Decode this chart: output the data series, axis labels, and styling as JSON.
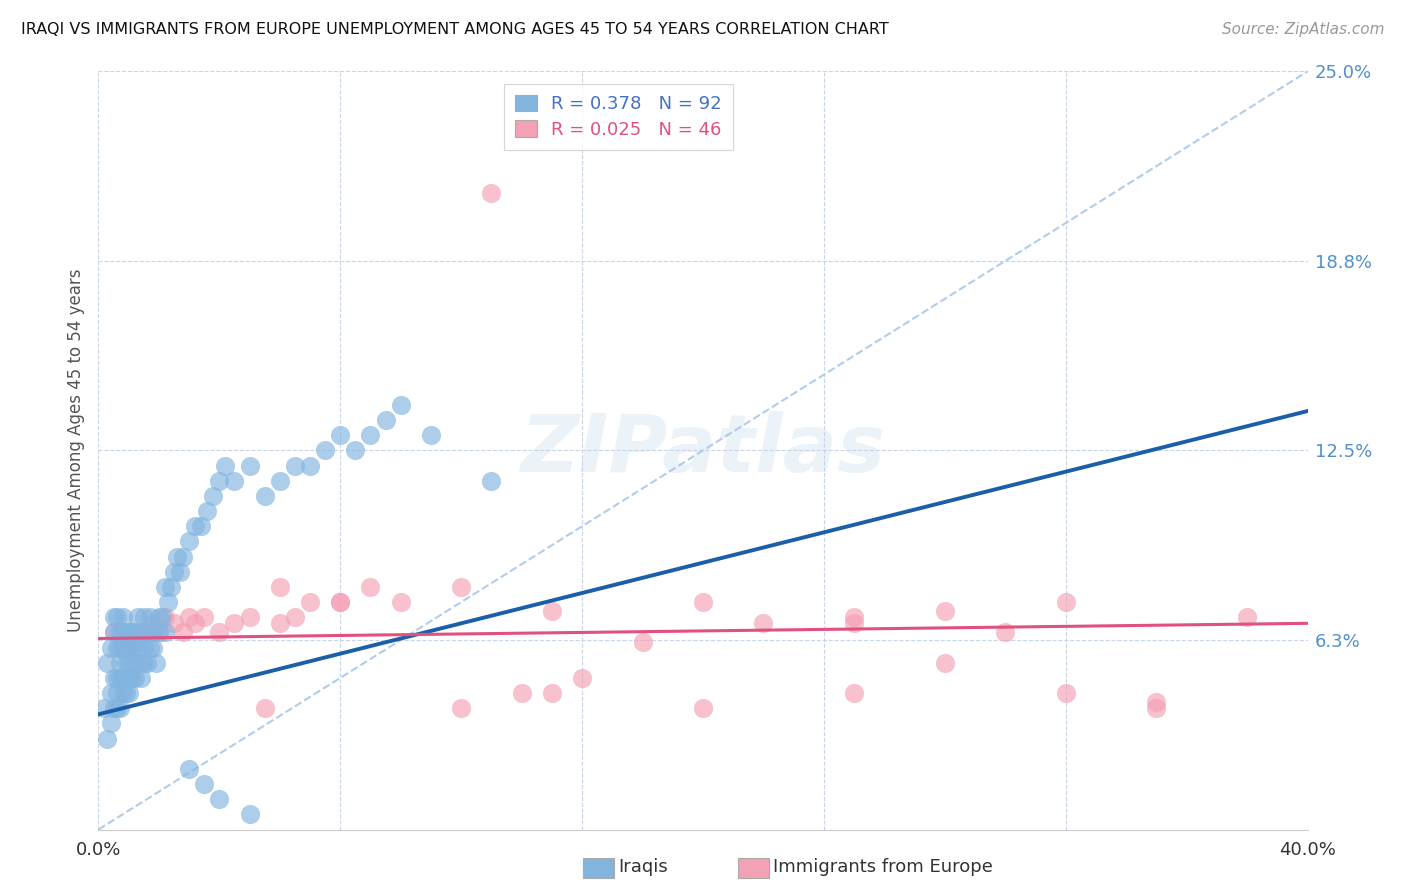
{
  "title": "IRAQI VS IMMIGRANTS FROM EUROPE UNEMPLOYMENT AMONG AGES 45 TO 54 YEARS CORRELATION CHART",
  "source": "Source: ZipAtlas.com",
  "ylabel": "Unemployment Among Ages 45 to 54 years",
  "xlim": [
    0.0,
    0.4
  ],
  "ylim": [
    0.0,
    0.25
  ],
  "yticks": [
    0.0,
    0.0625,
    0.125,
    0.1875,
    0.25
  ],
  "ytick_labels": [
    "",
    "6.3%",
    "12.5%",
    "18.8%",
    "25.0%"
  ],
  "xticks": [
    0.0,
    0.08,
    0.16,
    0.24,
    0.32,
    0.4
  ],
  "xtick_labels": [
    "0.0%",
    "",
    "",
    "",
    "",
    "40.0%"
  ],
  "legend_label1": "R = 0.378   N = 92",
  "legend_label2": "R = 0.025   N = 46",
  "legend_color1": "#82b4e0",
  "legend_color2": "#f4a0b5",
  "watermark_text": "ZIPatlas",
  "iraqis_color": "#82b4e0",
  "europe_color": "#f4a0b5",
  "iraqis_line_color": "#1a5fa8",
  "europe_line_color": "#e05080",
  "dashed_line_color": "#a8c8e8",
  "background_color": "#ffffff",
  "grid_color": "#c8d4e8",
  "right_tick_color": "#5090cc",
  "bottom_legend_label1": "Iraqis",
  "bottom_legend_label2": "Immigrants from Europe",
  "iraq_x": [
    0.002,
    0.003,
    0.003,
    0.004,
    0.004,
    0.004,
    0.005,
    0.005,
    0.005,
    0.005,
    0.006,
    0.006,
    0.006,
    0.006,
    0.006,
    0.007,
    0.007,
    0.007,
    0.007,
    0.007,
    0.008,
    0.008,
    0.008,
    0.008,
    0.008,
    0.009,
    0.009,
    0.009,
    0.009,
    0.009,
    0.01,
    0.01,
    0.01,
    0.01,
    0.01,
    0.011,
    0.011,
    0.011,
    0.012,
    0.012,
    0.012,
    0.013,
    0.013,
    0.014,
    0.014,
    0.014,
    0.015,
    0.015,
    0.015,
    0.016,
    0.016,
    0.017,
    0.017,
    0.018,
    0.018,
    0.019,
    0.02,
    0.02,
    0.021,
    0.022,
    0.022,
    0.023,
    0.024,
    0.025,
    0.026,
    0.027,
    0.028,
    0.03,
    0.032,
    0.034,
    0.036,
    0.038,
    0.04,
    0.042,
    0.045,
    0.05,
    0.055,
    0.06,
    0.065,
    0.07,
    0.075,
    0.08,
    0.085,
    0.09,
    0.095,
    0.1,
    0.11,
    0.13,
    0.03,
    0.035,
    0.04,
    0.05
  ],
  "iraq_y": [
    0.04,
    0.055,
    0.03,
    0.045,
    0.06,
    0.035,
    0.05,
    0.065,
    0.04,
    0.07,
    0.045,
    0.06,
    0.05,
    0.07,
    0.04,
    0.055,
    0.065,
    0.04,
    0.06,
    0.05,
    0.045,
    0.06,
    0.07,
    0.05,
    0.065,
    0.045,
    0.06,
    0.05,
    0.065,
    0.055,
    0.05,
    0.065,
    0.045,
    0.06,
    0.055,
    0.05,
    0.065,
    0.06,
    0.055,
    0.065,
    0.05,
    0.06,
    0.07,
    0.055,
    0.065,
    0.05,
    0.06,
    0.055,
    0.07,
    0.065,
    0.055,
    0.06,
    0.07,
    0.065,
    0.06,
    0.055,
    0.07,
    0.065,
    0.07,
    0.065,
    0.08,
    0.075,
    0.08,
    0.085,
    0.09,
    0.085,
    0.09,
    0.095,
    0.1,
    0.1,
    0.105,
    0.11,
    0.115,
    0.12,
    0.115,
    0.12,
    0.11,
    0.115,
    0.12,
    0.12,
    0.125,
    0.13,
    0.125,
    0.13,
    0.135,
    0.14,
    0.13,
    0.115,
    0.02,
    0.015,
    0.01,
    0.005
  ],
  "europe_x": [
    0.005,
    0.008,
    0.012,
    0.015,
    0.018,
    0.02,
    0.022,
    0.025,
    0.028,
    0.03,
    0.032,
    0.035,
    0.04,
    0.045,
    0.05,
    0.055,
    0.06,
    0.065,
    0.07,
    0.08,
    0.09,
    0.1,
    0.12,
    0.14,
    0.16,
    0.18,
    0.2,
    0.22,
    0.25,
    0.28,
    0.3,
    0.32,
    0.35,
    0.38,
    0.06,
    0.08,
    0.12,
    0.15,
    0.2,
    0.25,
    0.28,
    0.32,
    0.35,
    0.15,
    0.25,
    0.13
  ],
  "europe_y": [
    0.065,
    0.06,
    0.062,
    0.065,
    0.068,
    0.065,
    0.07,
    0.068,
    0.065,
    0.07,
    0.068,
    0.07,
    0.065,
    0.068,
    0.07,
    0.04,
    0.068,
    0.07,
    0.075,
    0.075,
    0.08,
    0.075,
    0.04,
    0.045,
    0.05,
    0.062,
    0.04,
    0.068,
    0.07,
    0.055,
    0.065,
    0.045,
    0.042,
    0.07,
    0.08,
    0.075,
    0.08,
    0.072,
    0.075,
    0.068,
    0.072,
    0.075,
    0.04,
    0.045,
    0.045,
    0.21
  ],
  "iraq_line_x": [
    0.0,
    0.4
  ],
  "iraq_line_y": [
    0.038,
    0.138
  ],
  "europe_line_x": [
    0.0,
    0.4
  ],
  "europe_line_y": [
    0.063,
    0.068
  ],
  "dash_line_x": [
    0.0,
    0.4
  ],
  "dash_line_y": [
    0.0,
    0.25
  ]
}
